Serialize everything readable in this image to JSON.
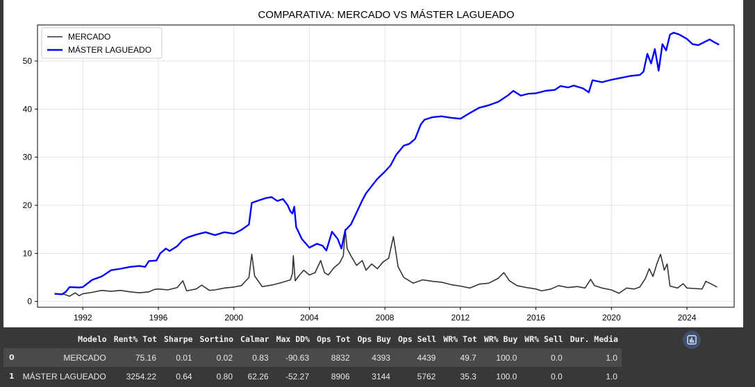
{
  "chart_data": {
    "type": "line",
    "title": "COMPARATIVA: MERCADO VS MÁSTER LAGUEADO",
    "xlabel": "",
    "ylabel": "",
    "xlim": [
      1989.6,
      2026.5
    ],
    "ylim": [
      -1.2,
      57.5
    ],
    "x_ticks": [
      1992,
      1996,
      2000,
      2004,
      2008,
      2012,
      2016,
      2020,
      2024
    ],
    "y_ticks": [
      0,
      10,
      20,
      30,
      40,
      50
    ],
    "grid": true,
    "legend_position": "top-left",
    "series": [
      {
        "name": "MERCADO",
        "color": "#333333",
        "points": [
          [
            1990.5,
            1.6
          ],
          [
            1991.0,
            1.5
          ],
          [
            1991.3,
            1.1
          ],
          [
            1991.6,
            1.8
          ],
          [
            1991.8,
            1.2
          ],
          [
            1992.0,
            1.6
          ],
          [
            1992.5,
            1.9
          ],
          [
            1993.0,
            2.3
          ],
          [
            1993.5,
            2.1
          ],
          [
            1994.0,
            2.3
          ],
          [
            1994.5,
            2.0
          ],
          [
            1995.0,
            1.8
          ],
          [
            1995.5,
            2.0
          ],
          [
            1995.8,
            2.5
          ],
          [
            1996.0,
            2.6
          ],
          [
            1996.5,
            2.4
          ],
          [
            1997.0,
            2.9
          ],
          [
            1997.3,
            4.3
          ],
          [
            1997.5,
            2.2
          ],
          [
            1998.0,
            2.6
          ],
          [
            1998.3,
            3.4
          ],
          [
            1998.7,
            2.3
          ],
          [
            1999.0,
            2.4
          ],
          [
            1999.5,
            2.8
          ],
          [
            2000.0,
            3.0
          ],
          [
            2000.4,
            3.3
          ],
          [
            2000.8,
            5.0
          ],
          [
            2000.95,
            9.8
          ],
          [
            2001.1,
            5.3
          ],
          [
            2001.5,
            3.1
          ],
          [
            2002.0,
            3.4
          ],
          [
            2002.5,
            3.9
          ],
          [
            2003.0,
            4.5
          ],
          [
            2003.1,
            5.8
          ],
          [
            2003.15,
            9.5
          ],
          [
            2003.25,
            4.3
          ],
          [
            2003.5,
            5.6
          ],
          [
            2003.7,
            6.5
          ],
          [
            2004.0,
            5.5
          ],
          [
            2004.3,
            6.0
          ],
          [
            2004.6,
            8.5
          ],
          [
            2004.8,
            6.0
          ],
          [
            2005.0,
            5.5
          ],
          [
            2005.3,
            7.0
          ],
          [
            2005.6,
            8.0
          ],
          [
            2005.8,
            9.5
          ],
          [
            2005.9,
            15.0
          ],
          [
            2006.0,
            11.0
          ],
          [
            2006.2,
            9.5
          ],
          [
            2006.5,
            7.5
          ],
          [
            2006.8,
            8.5
          ],
          [
            2007.0,
            6.5
          ],
          [
            2007.3,
            7.8
          ],
          [
            2007.6,
            6.8
          ],
          [
            2007.9,
            8.2
          ],
          [
            2008.2,
            9.0
          ],
          [
            2008.45,
            13.5
          ],
          [
            2008.7,
            7.2
          ],
          [
            2009.0,
            5.0
          ],
          [
            2009.5,
            3.8
          ],
          [
            2010.0,
            4.5
          ],
          [
            2010.5,
            4.2
          ],
          [
            2011.0,
            4.0
          ],
          [
            2011.5,
            3.5
          ],
          [
            2012.0,
            3.2
          ],
          [
            2012.5,
            2.8
          ],
          [
            2013.0,
            3.6
          ],
          [
            2013.5,
            3.8
          ],
          [
            2014.0,
            4.8
          ],
          [
            2014.3,
            6.0
          ],
          [
            2014.6,
            4.3
          ],
          [
            2015.0,
            3.3
          ],
          [
            2015.5,
            2.9
          ],
          [
            2016.0,
            2.6
          ],
          [
            2016.3,
            2.2
          ],
          [
            2016.8,
            2.6
          ],
          [
            2017.2,
            3.3
          ],
          [
            2017.7,
            2.9
          ],
          [
            2018.2,
            3.1
          ],
          [
            2018.6,
            2.8
          ],
          [
            2018.9,
            4.6
          ],
          [
            2019.1,
            3.3
          ],
          [
            2019.5,
            2.8
          ],
          [
            2020.0,
            2.4
          ],
          [
            2020.4,
            1.7
          ],
          [
            2020.8,
            2.8
          ],
          [
            2021.2,
            2.6
          ],
          [
            2021.5,
            3.0
          ],
          [
            2021.8,
            4.8
          ],
          [
            2022.0,
            6.8
          ],
          [
            2022.2,
            5.2
          ],
          [
            2022.4,
            7.8
          ],
          [
            2022.6,
            9.8
          ],
          [
            2022.8,
            6.5
          ],
          [
            2022.95,
            7.8
          ],
          [
            2023.1,
            3.2
          ],
          [
            2023.5,
            2.8
          ],
          [
            2023.8,
            3.7
          ],
          [
            2024.0,
            2.8
          ],
          [
            2024.4,
            2.7
          ],
          [
            2024.8,
            2.6
          ],
          [
            2025.0,
            4.2
          ],
          [
            2025.3,
            3.6
          ],
          [
            2025.6,
            3.0
          ]
        ]
      },
      {
        "name": "MÁSTER LAGUEADO",
        "color": "#0000ff",
        "points": [
          [
            1990.5,
            1.6
          ],
          [
            1990.9,
            1.5
          ],
          [
            1991.1,
            2.0
          ],
          [
            1991.3,
            3.0
          ],
          [
            1991.8,
            2.9
          ],
          [
            1992.0,
            3.0
          ],
          [
            1992.5,
            4.5
          ],
          [
            1993.0,
            5.2
          ],
          [
            1993.5,
            6.5
          ],
          [
            1994.0,
            6.8
          ],
          [
            1994.5,
            7.2
          ],
          [
            1995.0,
            7.4
          ],
          [
            1995.3,
            7.2
          ],
          [
            1995.5,
            8.4
          ],
          [
            1995.9,
            8.5
          ],
          [
            1996.1,
            10.0
          ],
          [
            1996.4,
            11.0
          ],
          [
            1996.6,
            10.5
          ],
          [
            1997.0,
            11.5
          ],
          [
            1997.3,
            12.8
          ],
          [
            1997.6,
            13.4
          ],
          [
            1998.0,
            13.9
          ],
          [
            1998.5,
            14.4
          ],
          [
            1999.0,
            13.8
          ],
          [
            1999.5,
            14.4
          ],
          [
            2000.0,
            14.1
          ],
          [
            2000.4,
            14.9
          ],
          [
            2000.8,
            16.0
          ],
          [
            2000.95,
            20.5
          ],
          [
            2001.3,
            21.0
          ],
          [
            2001.7,
            21.5
          ],
          [
            2002.0,
            21.7
          ],
          [
            2002.3,
            20.9
          ],
          [
            2002.6,
            21.3
          ],
          [
            2002.85,
            20.0
          ],
          [
            2003.0,
            18.7
          ],
          [
            2003.1,
            18.3
          ],
          [
            2003.2,
            19.7
          ],
          [
            2003.3,
            15.5
          ],
          [
            2003.6,
            13.0
          ],
          [
            2004.0,
            11.2
          ],
          [
            2004.4,
            12.0
          ],
          [
            2004.7,
            11.6
          ],
          [
            2004.9,
            10.6
          ],
          [
            2005.2,
            14.5
          ],
          [
            2005.5,
            13.0
          ],
          [
            2005.7,
            11.0
          ],
          [
            2005.9,
            14.8
          ],
          [
            2006.2,
            16.0
          ],
          [
            2006.5,
            18.5
          ],
          [
            2006.8,
            21.0
          ],
          [
            2007.0,
            22.5
          ],
          [
            2007.3,
            24.0
          ],
          [
            2007.6,
            25.5
          ],
          [
            2008.0,
            27.0
          ],
          [
            2008.3,
            28.3
          ],
          [
            2008.6,
            30.5
          ],
          [
            2009.0,
            32.4
          ],
          [
            2009.3,
            32.8
          ],
          [
            2009.6,
            33.8
          ],
          [
            2009.9,
            36.8
          ],
          [
            2010.1,
            37.8
          ],
          [
            2010.5,
            38.3
          ],
          [
            2011.0,
            38.5
          ],
          [
            2011.5,
            38.2
          ],
          [
            2012.0,
            38.0
          ],
          [
            2012.5,
            39.2
          ],
          [
            2013.0,
            40.3
          ],
          [
            2013.5,
            40.8
          ],
          [
            2014.0,
            41.5
          ],
          [
            2014.5,
            42.8
          ],
          [
            2014.8,
            43.8
          ],
          [
            2015.2,
            42.8
          ],
          [
            2015.6,
            43.2
          ],
          [
            2016.0,
            43.3
          ],
          [
            2016.5,
            43.8
          ],
          [
            2017.0,
            44.0
          ],
          [
            2017.3,
            44.8
          ],
          [
            2017.7,
            44.5
          ],
          [
            2018.0,
            44.9
          ],
          [
            2018.5,
            44.3
          ],
          [
            2018.8,
            43.5
          ],
          [
            2019.0,
            46.0
          ],
          [
            2019.5,
            45.6
          ],
          [
            2020.0,
            46.1
          ],
          [
            2020.5,
            46.5
          ],
          [
            2021.0,
            46.9
          ],
          [
            2021.5,
            47.1
          ],
          [
            2021.7,
            47.8
          ],
          [
            2021.9,
            51.5
          ],
          [
            2022.1,
            49.5
          ],
          [
            2022.3,
            52.5
          ],
          [
            2022.5,
            48.0
          ],
          [
            2022.7,
            53.5
          ],
          [
            2022.9,
            52.2
          ],
          [
            2023.1,
            55.5
          ],
          [
            2023.3,
            55.9
          ],
          [
            2023.6,
            55.5
          ],
          [
            2024.0,
            54.6
          ],
          [
            2024.3,
            53.5
          ],
          [
            2024.6,
            53.3
          ],
          [
            2024.9,
            53.9
          ],
          [
            2025.2,
            54.5
          ],
          [
            2025.5,
            53.8
          ],
          [
            2025.7,
            53.4
          ]
        ]
      }
    ]
  },
  "table": {
    "headers": [
      "",
      "Modelo",
      "Rent% Tot",
      "Sharpe",
      "Sortino",
      "Calmar",
      "Max DD%",
      "Ops Tot",
      "Ops Buy",
      "Ops Sell",
      "WR% Tot",
      "WR% Buy",
      "WR% Sell",
      "Dur. Media"
    ],
    "rows": [
      [
        "0",
        "MERCADO",
        "75.16",
        "0.01",
        "0.02",
        "0.83",
        "-90.63",
        "8832",
        "4393",
        "4439",
        "49.7",
        "100.0",
        "0.0",
        "1.0"
      ],
      [
        "1",
        "MÁSTER LAGUEADO",
        "3254.22",
        "0.64",
        "0.80",
        "62.26",
        "-52.27",
        "8906",
        "3144",
        "5762",
        "35.3",
        "100.0",
        "0.0",
        "1.0"
      ]
    ]
  },
  "chart_button_icon": "bar-chart-icon"
}
